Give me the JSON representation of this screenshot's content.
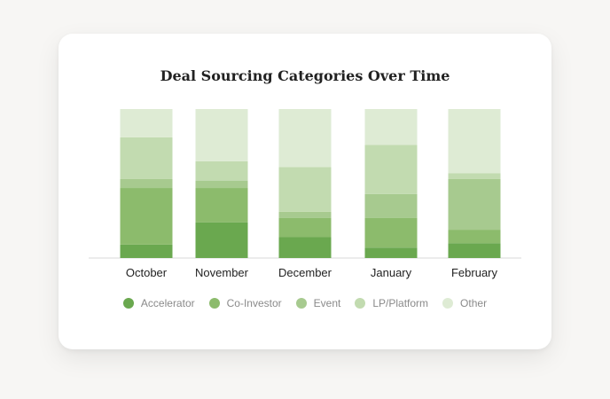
{
  "chart_data": {
    "type": "bar",
    "stacked": true,
    "normalized": true,
    "title": "Deal Sourcing Categories Over Time",
    "categories": [
      "October",
      "November",
      "December",
      "January",
      "February"
    ],
    "series": [
      {
        "name": "Accelerator",
        "color": "#6aa84f",
        "values": [
          9,
          24,
          14,
          7,
          10
        ]
      },
      {
        "name": "Co-Investor",
        "color": "#8cbb6c",
        "values": [
          38,
          23,
          13,
          20,
          9
        ]
      },
      {
        "name": "Event",
        "color": "#a7ca8f",
        "values": [
          6,
          5,
          4,
          16,
          34
        ]
      },
      {
        "name": "LP/Platform",
        "color": "#c2dbb0",
        "values": [
          28,
          13,
          30,
          33,
          4
        ]
      },
      {
        "name": "Other",
        "color": "#deebd4",
        "values": [
          19,
          35,
          39,
          24,
          43
        ]
      }
    ],
    "legend_position": "bottom",
    "grid": false
  }
}
